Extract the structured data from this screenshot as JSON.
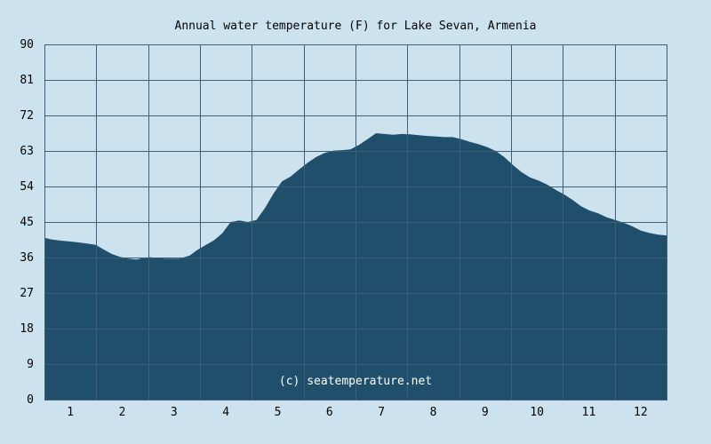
{
  "chart_data": {
    "type": "area",
    "title": "Annual water temperature (F) for Lake Sevan, Armenia",
    "xlabel": "",
    "ylabel": "",
    "credit": "(c) seatemperature.net",
    "categories": [
      "1",
      "2",
      "3",
      "4",
      "5",
      "6",
      "7",
      "8",
      "9",
      "10",
      "11",
      "12"
    ],
    "yticks": [
      "0",
      "9",
      "18",
      "27",
      "36",
      "45",
      "54",
      "63",
      "72",
      "81",
      "90"
    ],
    "ylim": [
      0,
      90
    ],
    "xlim_days": [
      1,
      365
    ],
    "grid": true,
    "fill_color": "#1f4f6a",
    "background_color": "#cce3ef",
    "grid_color": "#3e5f77",
    "series": [
      {
        "x": [
          1,
          5,
          10,
          15,
          20,
          25,
          31,
          35,
          40,
          45,
          50,
          55,
          59,
          63,
          68,
          72,
          76,
          80,
          86,
          90,
          95,
          100,
          105,
          110,
          115,
          120,
          125,
          130,
          135,
          140,
          145,
          150,
          155,
          160,
          165,
          170,
          175,
          180,
          185,
          190,
          195,
          200,
          205,
          210,
          215,
          220,
          225,
          230,
          235,
          240,
          245,
          250,
          255,
          260,
          265,
          270,
          275,
          280,
          285,
          290,
          295,
          300,
          305,
          310,
          315,
          320,
          325,
          330,
          335,
          340,
          345,
          350,
          355,
          360,
          365
        ],
        "y": [
          41,
          40.6,
          40.3,
          40.1,
          39.9,
          39.6,
          39.2,
          38.2,
          37,
          36.2,
          35.7,
          35.5,
          35.9,
          36.1,
          35.8,
          35.7,
          35.7,
          35.7,
          36.5,
          37.8,
          39.1,
          40.3,
          42.1,
          45,
          45.4,
          45,
          45.5,
          48.5,
          52.2,
          55.3,
          56.5,
          58.3,
          60,
          61.5,
          62.5,
          63.1,
          63.2,
          63.4,
          64.5,
          66,
          67.5,
          67.3,
          67.1,
          67.3,
          67.2,
          67,
          66.8,
          66.7,
          66.5,
          66.5,
          66,
          65.3,
          64.7,
          64,
          63,
          61.5,
          59.5,
          57.7,
          56.3,
          55.5,
          54.5,
          53.2,
          52,
          50.6,
          49,
          47.9,
          47.2,
          46.2,
          45.5,
          44.8,
          43.9,
          42.8,
          42.2,
          41.8,
          41.6
        ]
      }
    ]
  }
}
